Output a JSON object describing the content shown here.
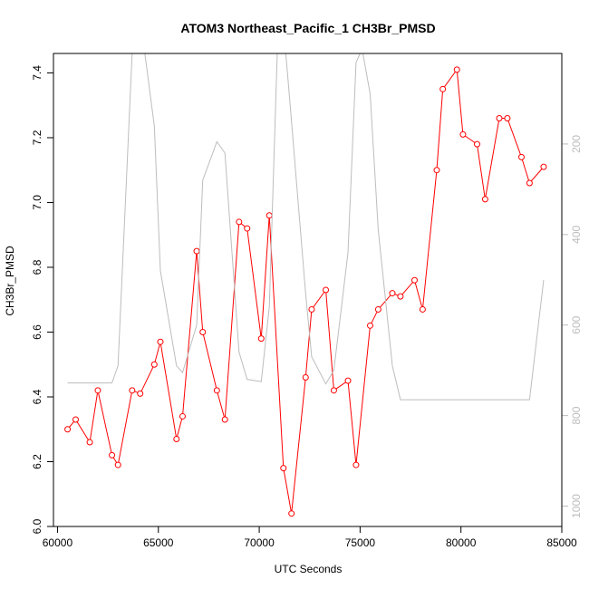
{
  "chart_data": {
    "type": "line",
    "title": "ATOM3 Northeast_Pacific_1 CH3Br_PMSD",
    "xlabel": "UTC Seconds",
    "ylabel": "CH3Br_PMSD",
    "xlim": [
      59800,
      85000
    ],
    "ylim": [
      6.0,
      7.46
    ],
    "x_ticks": [
      60000,
      65000,
      70000,
      75000,
      80000,
      85000
    ],
    "y_ticks": [
      6.0,
      6.2,
      6.4,
      6.6,
      6.8,
      7.0,
      7.2,
      7.4
    ],
    "secondary_axis": {
      "side": "right",
      "color": "#bdbdbd",
      "lim": [
        1045,
        0
      ],
      "ticks": [
        200,
        400,
        600,
        800,
        1000
      ]
    },
    "series": [
      {
        "color": "#ff0000",
        "marker": "open-circle",
        "axis": "left",
        "x": [
          60500,
          60900,
          61600,
          62000,
          62700,
          63000,
          63700,
          64100,
          64800,
          65100,
          65900,
          66200,
          66900,
          67200,
          67900,
          68300,
          69000,
          69400,
          70100,
          70500,
          71200,
          71600,
          72300,
          72600,
          73300,
          73700,
          74400,
          74800,
          75500,
          75900,
          76600,
          77000,
          77700,
          78100,
          78800,
          79100,
          79800,
          80100,
          80800,
          81200,
          81900,
          82300,
          83000,
          83400,
          84100
        ],
        "y": [
          6.3,
          6.33,
          6.26,
          6.42,
          6.22,
          6.19,
          6.42,
          6.41,
          6.5,
          6.57,
          6.27,
          6.34,
          6.85,
          6.6,
          6.42,
          6.33,
          6.94,
          6.92,
          6.58,
          6.96,
          6.18,
          6.04,
          6.46,
          6.67,
          6.73,
          6.42,
          6.45,
          6.19,
          6.62,
          6.67,
          6.72,
          6.71,
          6.76,
          6.67,
          7.1,
          7.35,
          7.41,
          7.21,
          7.18,
          7.01,
          7.26,
          7.26,
          7.14,
          7.06,
          7.11
        ]
      },
      {
        "color": "#bdbdbd",
        "marker": "none",
        "axis": "right",
        "x": [
          60500,
          62700,
          63000,
          63700,
          63800,
          64300,
          64800,
          65100,
          65900,
          66200,
          66900,
          67200,
          67900,
          68300,
          69000,
          69400,
          70100,
          70500,
          70900,
          71300,
          71600,
          72300,
          72600,
          73300,
          73700,
          74400,
          74800,
          75100,
          75500,
          75900,
          76600,
          77000,
          83400,
          84100
        ],
        "y": [
          728,
          728,
          690,
          0,
          -10,
          -10,
          160,
          480,
          690,
          705,
          600,
          280,
          195,
          220,
          660,
          720,
          725,
          560,
          -10,
          -10,
          150,
          530,
          670,
          730,
          700,
          440,
          20,
          -10,
          90,
          390,
          690,
          765,
          765,
          500
        ]
      }
    ]
  }
}
